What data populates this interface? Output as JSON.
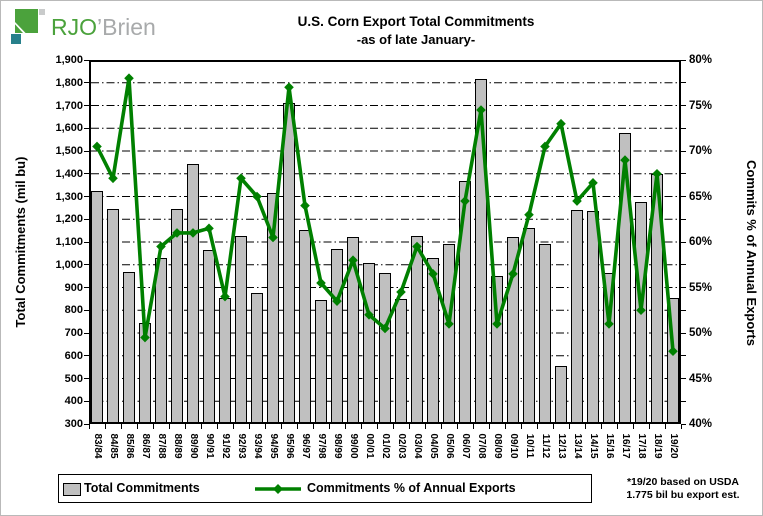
{
  "logo": {
    "primary": "RJO",
    "secondary": "’Brien"
  },
  "title": {
    "line1": "U.S. Corn Export Total Commitments",
    "line2": "-as of late January-"
  },
  "chart_data": {
    "type": "combo-bar-line",
    "categories": [
      "83/84",
      "84/85",
      "85/86",
      "86/87",
      "87/88",
      "88/89",
      "89/90",
      "90/91",
      "91/92",
      "92/93",
      "93/94",
      "94/95",
      "95/96",
      "96/97",
      "97/98",
      "98/99",
      "99/00",
      "00/01",
      "01/02",
      "02/03",
      "03/04",
      "04/05",
      "05/06",
      "06/07",
      "07/08",
      "08/09",
      "09/10",
      "10/11",
      "11/12",
      "12/13",
      "13/14",
      "14/15",
      "15/16",
      "16/17",
      "17/18",
      "18/19",
      "19/20"
    ],
    "series": [
      {
        "name": "Total Commitments",
        "type": "bar",
        "axis": "left",
        "color": "#c0c0c0",
        "border_color": "#000000",
        "values": [
          1325,
          1245,
          970,
          745,
          1030,
          1245,
          1445,
          1065,
          855,
          1125,
          875,
          1315,
          1710,
          1155,
          845,
          1070,
          1120,
          1010,
          965,
          850,
          1125,
          1030,
          1090,
          1370,
          1815,
          950,
          1120,
          1160,
          1090,
          555,
          1240,
          1235,
          965,
          1580,
          1275,
          1400,
          855
        ]
      },
      {
        "name": "Commitments % of Annual Exports",
        "type": "line",
        "axis": "right",
        "color": "#008000",
        "marker": "diamond",
        "values": [
          70.5,
          67,
          78,
          49.5,
          59.5,
          61,
          61,
          61.5,
          54,
          67,
          65,
          60.5,
          77,
          64,
          55.5,
          53.5,
          58,
          52,
          50.5,
          54.5,
          59.5,
          56.5,
          51,
          64.5,
          74.5,
          51,
          56.5,
          63,
          70.5,
          73,
          64.5,
          66.5,
          51,
          69,
          52.5,
          67.5,
          48
        ]
      }
    ],
    "left_axis": {
      "title": "Total Commitments (mil bu)",
      "min": 300,
      "max": 1900,
      "step": 100,
      "tick_labels": [
        "1,900",
        "1,800",
        "1,700",
        "1,600",
        "1,500",
        "1,400",
        "1,300",
        "1,200",
        "1,100",
        "1,000",
        "900",
        "800",
        "700",
        "600",
        "500",
        "400",
        "300"
      ]
    },
    "right_axis": {
      "title": "Commits % of Annual Exports",
      "min": 40,
      "max": 80,
      "step": 5,
      "minor_step": 2.5,
      "tick_labels": [
        "80%",
        "75%",
        "70%",
        "65%",
        "60%",
        "55%",
        "50%",
        "45%",
        "40%"
      ]
    },
    "grid": {
      "horizontal": true,
      "style": "dash-dot",
      "interval": 100
    },
    "legend_position": "bottom"
  },
  "footnote": {
    "line1": "*19/20 based on USDA",
    "line2": "1.775 bil bu export est."
  }
}
